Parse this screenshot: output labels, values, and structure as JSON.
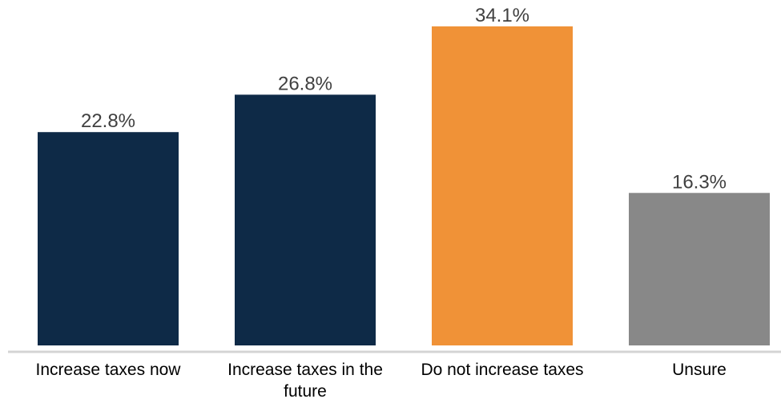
{
  "chart_data": {
    "type": "bar",
    "title": "",
    "xlabel": "",
    "ylabel": "",
    "ylim": [
      0,
      34.1
    ],
    "grid": false,
    "legend": "none",
    "value_format": "percent-1dp",
    "categories": [
      "Increase taxes now",
      "Increase taxes in the future",
      "Do not increase taxes",
      "Unsure"
    ],
    "category_label_lines": [
      [
        "Increase taxes now"
      ],
      [
        "Increase taxes in the",
        "future"
      ],
      [
        "Do not increase taxes"
      ],
      [
        "Unsure"
      ]
    ],
    "values": [
      22.8,
      26.8,
      34.1,
      16.3
    ],
    "value_labels": [
      "22.8%",
      "26.8%",
      "34.1%",
      "16.3%"
    ],
    "bar_colors": [
      "#0E2A47",
      "#0E2A47",
      "#F09237",
      "#888888"
    ],
    "axis_color": "#D4D4D4"
  }
}
